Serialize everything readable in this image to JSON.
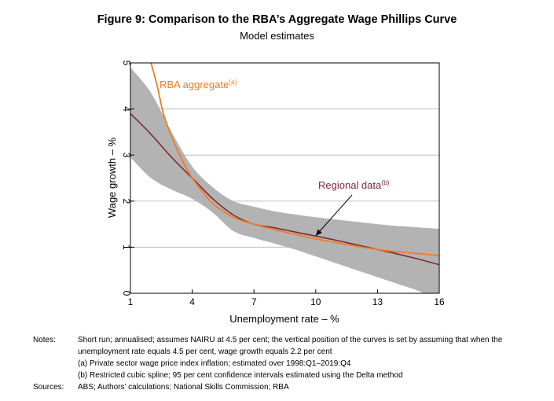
{
  "chart_data": {
    "type": "line",
    "title": "Figure 9: Comparison to the RBA’s Aggregate Wage Phillips Curve",
    "subtitle": "Model estimates",
    "xlabel": "Unemployment rate – %",
    "ylabel": "Wage growth – %",
    "xlim": [
      1,
      16
    ],
    "ylim": [
      0,
      5
    ],
    "xticks": [
      1,
      4,
      7,
      10,
      13,
      16
    ],
    "yticks": [
      0,
      1,
      2,
      3,
      4,
      5
    ],
    "grid": true,
    "series": [
      {
        "name": "RBA aggregate",
        "superscript": "(a)",
        "color": "#f47b20",
        "x": [
          2.0,
          2.3,
          2.6,
          3.0,
          3.5,
          4.0,
          5.0,
          6.0,
          7.0,
          8.0,
          9.0,
          10.0,
          11.0,
          12.0,
          13.0,
          14.0,
          15.0,
          16.0
        ],
        "y": [
          5.0,
          4.5,
          3.9,
          3.4,
          2.9,
          2.5,
          1.95,
          1.65,
          1.5,
          1.38,
          1.28,
          1.18,
          1.1,
          1.02,
          0.95,
          0.9,
          0.86,
          0.82
        ]
      },
      {
        "name": "Regional data",
        "superscript": "(b)",
        "color": "#7b2c35",
        "x": [
          1,
          2,
          3,
          4,
          5,
          6,
          7,
          8,
          9,
          10,
          11,
          12,
          13,
          14,
          15,
          16
        ],
        "y": [
          3.9,
          3.45,
          2.95,
          2.5,
          2.05,
          1.7,
          1.5,
          1.42,
          1.33,
          1.24,
          1.15,
          1.05,
          0.95,
          0.85,
          0.74,
          0.62
        ]
      }
    ],
    "confidence_band": {
      "label": "95 per cent confidence interval",
      "color": "#b3b3b3",
      "x": [
        1,
        2,
        3,
        4,
        5,
        6,
        7,
        8,
        9,
        10,
        11,
        12,
        13,
        14,
        15,
        16
      ],
      "upper": [
        4.9,
        4.35,
        3.5,
        2.75,
        2.3,
        2.0,
        1.88,
        1.78,
        1.71,
        1.65,
        1.6,
        1.55,
        1.5,
        1.46,
        1.43,
        1.4
      ],
      "lower": [
        2.95,
        2.5,
        2.25,
        2.05,
        1.75,
        1.35,
        1.2,
        1.08,
        0.95,
        0.8,
        0.65,
        0.5,
        0.35,
        0.2,
        0.05,
        -0.15
      ]
    },
    "annotations": [
      {
        "text": "RBA aggregate",
        "superscript": "(a)"
      },
      {
        "text": "Regional data",
        "superscript": "(b)",
        "arrow_to": {
          "x": 10,
          "y": 1.25
        }
      }
    ]
  },
  "notes": {
    "notes_label": "Notes:",
    "line1": "Short run; annualised; assumes NAIRU at 4.5 per cent; the vertical position of the curves is set by assuming that when the",
    "line2": "unemployment rate equals 4.5 per cent, wage growth equals 2.2 per cent",
    "line3": "(a) Private sector wage price index inflation; estimated over 1998:Q1–2019:Q4",
    "line4": "(b) Restricted cubic spline; 95 per cent confidence intervals estimated using the Delta method",
    "sources_label": "Sources:",
    "sources": "ABS; Authors’ calculations; National Skills Commission; RBA"
  }
}
